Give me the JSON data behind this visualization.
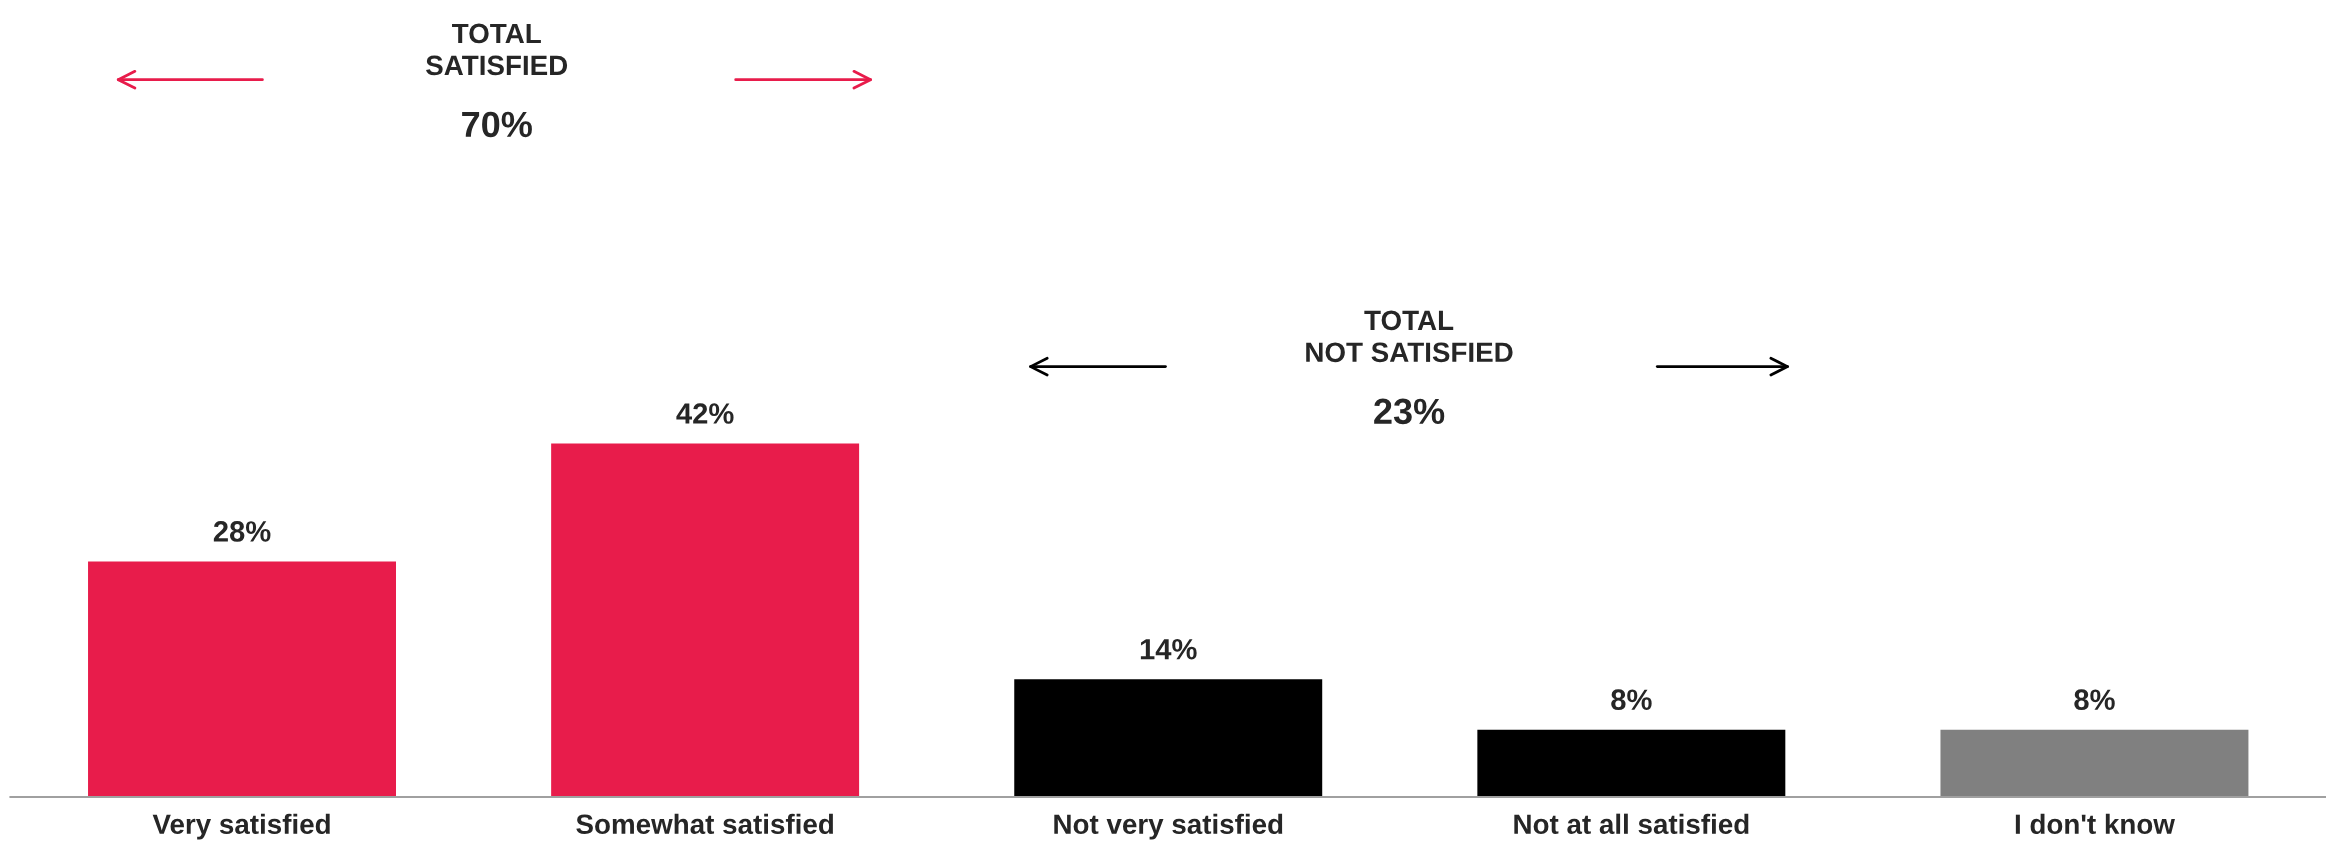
{
  "chart_data": {
    "type": "bar",
    "categories": [
      "Very satisfied",
      "Somewhat satisfied",
      "Not very satisfied",
      "Not at all satisfied",
      "I don't know"
    ],
    "values": [
      28,
      42,
      14,
      8,
      8
    ],
    "value_labels": [
      "28%",
      "42%",
      "14%",
      "8%",
      "8%"
    ],
    "colors": [
      "#e81c4b",
      "#e81c4b",
      "#000000",
      "#000000",
      "#808080"
    ],
    "annotations": [
      "TOTAL\nSATISFIED\n70%",
      "TOTAL\nNOT SATISFIED\n23%"
    ]
  }
}
